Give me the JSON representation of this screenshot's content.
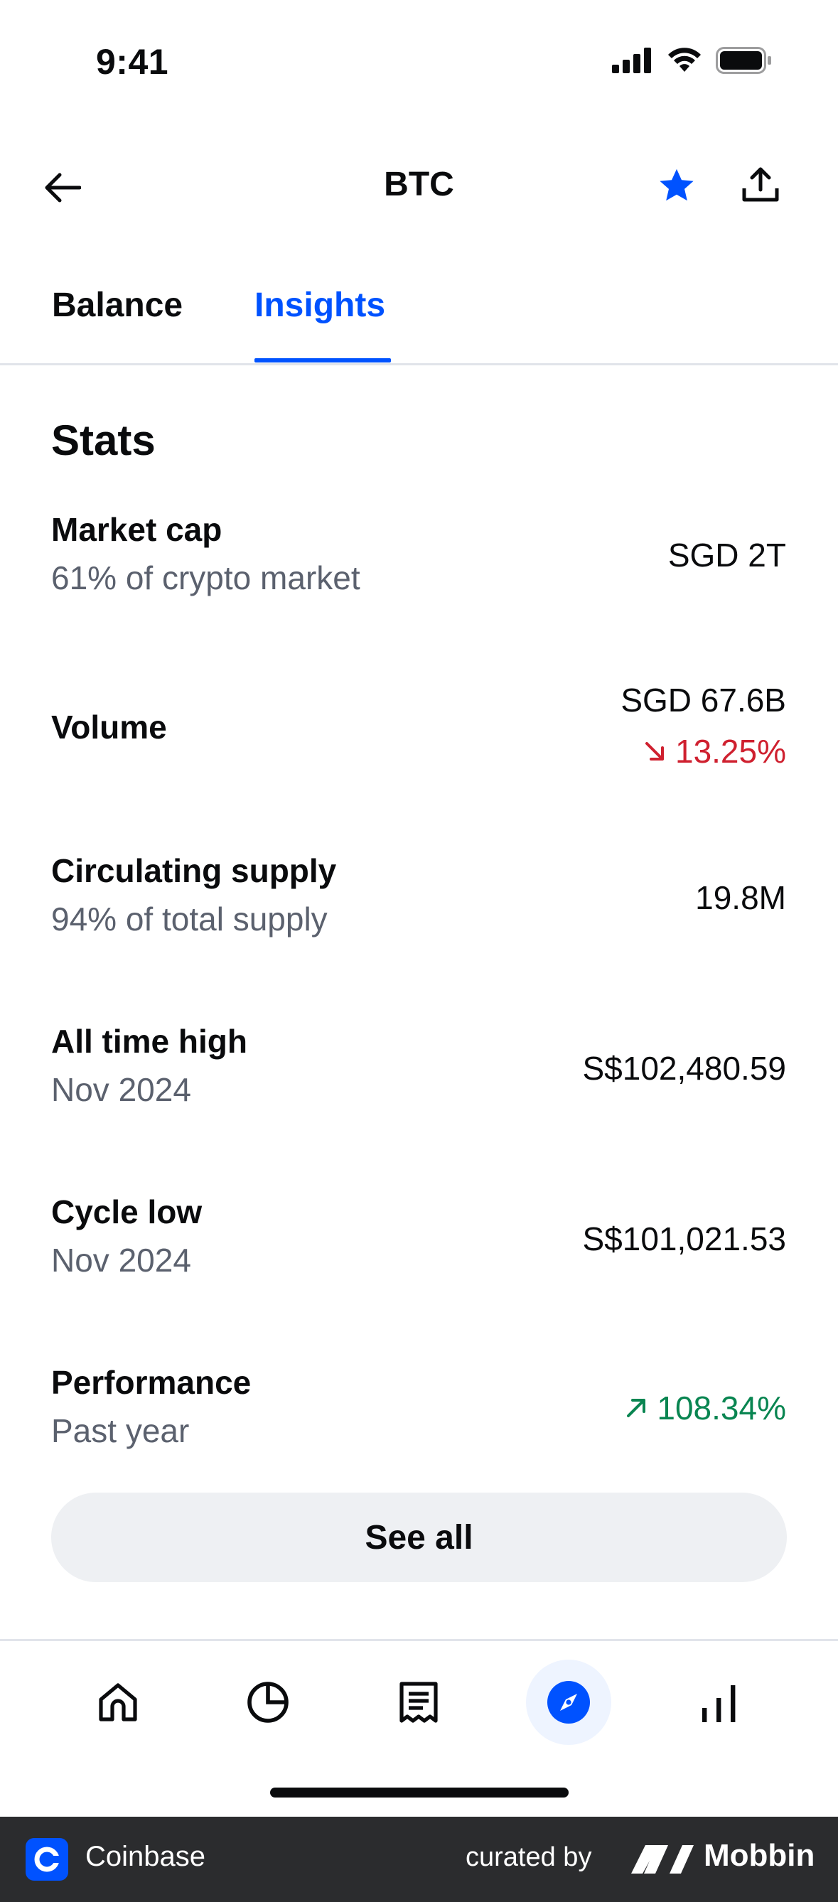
{
  "status_bar": {
    "time": "9:41"
  },
  "header": {
    "title": "BTC"
  },
  "tabs": [
    {
      "label": "Balance",
      "active": false
    },
    {
      "label": "Insights",
      "active": true
    }
  ],
  "stats": {
    "title": "Stats",
    "rows": [
      {
        "label": "Market cap",
        "sub": "61% of crypto market",
        "value": "SGD 2T"
      },
      {
        "label": "Volume",
        "value": "SGD 67.6B",
        "change": "13.25%",
        "change_direction": "down"
      },
      {
        "label": "Circulating supply",
        "sub": "94% of total supply",
        "value": "19.8M"
      },
      {
        "label": "All time high",
        "sub": "Nov 2024",
        "value": "S$102,480.59"
      },
      {
        "label": "Cycle low",
        "sub": "Nov 2024",
        "value": "S$101,021.53"
      },
      {
        "label": "Performance",
        "sub": "Past year",
        "change": "108.34%",
        "change_direction": "up"
      }
    ],
    "see_all_label": "See all"
  },
  "bottom_nav": {
    "items": [
      {
        "icon": "home-icon",
        "active": false
      },
      {
        "icon": "portfolio-pie-icon",
        "active": false
      },
      {
        "icon": "receipt-icon",
        "active": false
      },
      {
        "icon": "explore-compass-icon",
        "active": true
      },
      {
        "icon": "bar-chart-icon",
        "active": false
      }
    ]
  },
  "footer": {
    "brand": "Coinbase",
    "curated_by": "curated by",
    "mobbin": "Mobbin"
  },
  "colors": {
    "accent": "#0052ff",
    "negative": "#cf202f",
    "positive": "#098551",
    "muted": "#5b616e"
  }
}
